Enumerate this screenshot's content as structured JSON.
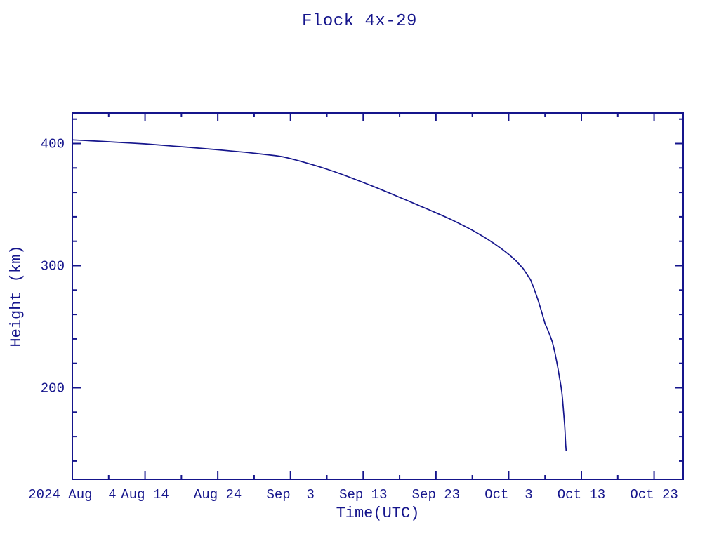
{
  "page": {
    "background": "#ffffff"
  },
  "chart_data": {
    "type": "line",
    "title": "Flock 4x-29",
    "xlabel": "Time(UTC)",
    "ylabel": "Height (km)",
    "ink_color": "#15158C",
    "grid": false,
    "legend": "none",
    "x_axis": {
      "unit": "days since 2024 Aug 4 00:00 UTC",
      "lim": [
        0,
        84
      ],
      "major_ticks": [
        {
          "day": 0,
          "label": "2024 Aug  4"
        },
        {
          "day": 10,
          "label": "Aug 14"
        },
        {
          "day": 20,
          "label": "Aug 24"
        },
        {
          "day": 30,
          "label": "Sep  3"
        },
        {
          "day": 40,
          "label": "Sep 13"
        },
        {
          "day": 50,
          "label": "Sep 23"
        },
        {
          "day": 60,
          "label": "Oct  3"
        },
        {
          "day": 70,
          "label": "Oct 13"
        },
        {
          "day": 80,
          "label": "Oct 23"
        }
      ],
      "minor_tick_days": [
        5,
        15,
        25,
        35,
        45,
        55,
        65,
        75
      ]
    },
    "y_axis": {
      "unit": "km",
      "lim": [
        125,
        425
      ],
      "major_ticks": [
        {
          "value": 200,
          "label": "200"
        },
        {
          "value": 300,
          "label": "300"
        },
        {
          "value": 400,
          "label": "400"
        }
      ],
      "minor_tick_values": [
        140,
        160,
        180,
        220,
        240,
        260,
        280,
        320,
        340,
        360,
        380,
        420
      ]
    },
    "series": [
      {
        "name": "Flock 4x-29 orbital height",
        "color": "#15158C",
        "points": [
          [
            0,
            403.0
          ],
          [
            2,
            402.4
          ],
          [
            4,
            401.8
          ],
          [
            6,
            401.1
          ],
          [
            8,
            400.4
          ],
          [
            10,
            399.7
          ],
          [
            12,
            398.8
          ],
          [
            14,
            397.8
          ],
          [
            16,
            396.9
          ],
          [
            18,
            395.9
          ],
          [
            20,
            394.9
          ],
          [
            22,
            393.8
          ],
          [
            24,
            392.7
          ],
          [
            26,
            391.4
          ],
          [
            28,
            390.0
          ],
          [
            29,
            389.1
          ],
          [
            30,
            387.7
          ],
          [
            31,
            386.1
          ],
          [
            32,
            384.4
          ],
          [
            33,
            382.7
          ],
          [
            34,
            380.9
          ],
          [
            35,
            379.0
          ],
          [
            36,
            377.0
          ],
          [
            37,
            374.9
          ],
          [
            38,
            372.7
          ],
          [
            39,
            370.4
          ],
          [
            40,
            368.1
          ],
          [
            41,
            365.8
          ],
          [
            42,
            363.4
          ],
          [
            43,
            361.0
          ],
          [
            44,
            358.5
          ],
          [
            45,
            356.0
          ],
          [
            46,
            353.5
          ],
          [
            47,
            351.0
          ],
          [
            48,
            348.4
          ],
          [
            49,
            345.9
          ],
          [
            50,
            343.3
          ],
          [
            51,
            340.7
          ],
          [
            52,
            338.0
          ],
          [
            53,
            335.1
          ],
          [
            54,
            332.1
          ],
          [
            55,
            329.0
          ],
          [
            56,
            325.6
          ],
          [
            57,
            322.0
          ],
          [
            58,
            318.1
          ],
          [
            59,
            313.9
          ],
          [
            60,
            309.3
          ],
          [
            61,
            304.0
          ],
          [
            62,
            297.6
          ],
          [
            63,
            288.5
          ],
          [
            63.5,
            281.0
          ],
          [
            64,
            272.5
          ],
          [
            64.5,
            263.0
          ],
          [
            65,
            252.5
          ],
          [
            65.4,
            247.0
          ],
          [
            65.8,
            241.0
          ],
          [
            66,
            237.5
          ],
          [
            66.2,
            233.0
          ],
          [
            66.4,
            227.5
          ],
          [
            66.6,
            221.5
          ],
          [
            66.8,
            215.0
          ],
          [
            67,
            208.0
          ],
          [
            67.1,
            204.5
          ],
          [
            67.2,
            201.0
          ],
          [
            67.3,
            197.0
          ],
          [
            67.4,
            191.0
          ],
          [
            67.5,
            184.0
          ],
          [
            67.6,
            177.0
          ],
          [
            67.7,
            169.0
          ],
          [
            67.75,
            164.5
          ],
          [
            67.8,
            158.0
          ],
          [
            67.85,
            153.0
          ],
          [
            67.9,
            148.5
          ]
        ]
      }
    ]
  }
}
